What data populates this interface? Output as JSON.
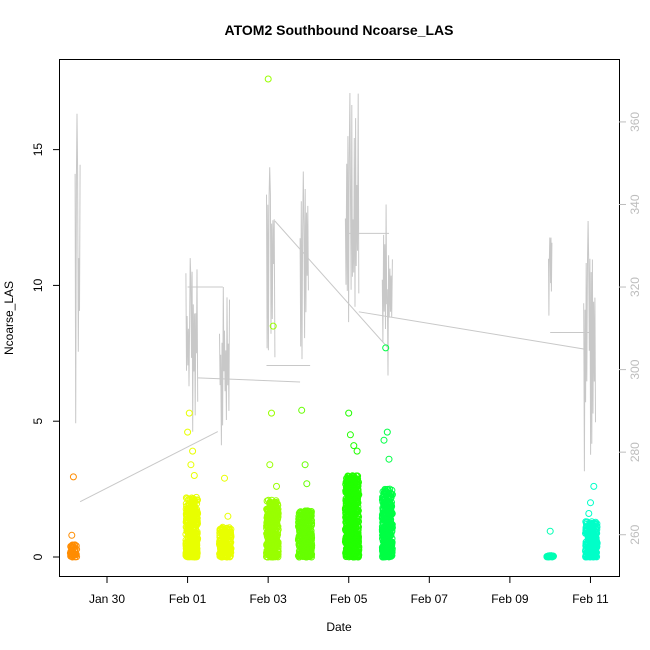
{
  "chart_data": {
    "type": "scatter",
    "title": "ATOM2 Southbound Ncoarse_LAS",
    "xlabel": "Date",
    "ylabel": "Ncoarse_LAS",
    "x_unit": "days",
    "x_ticks": [
      {
        "label": "Jan 30",
        "date": "2017-01-30"
      },
      {
        "label": "Feb 01",
        "date": "2017-02-01"
      },
      {
        "label": "Feb 03",
        "date": "2017-02-03"
      },
      {
        "label": "Feb 05",
        "date": "2017-02-05"
      },
      {
        "label": "Feb 07",
        "date": "2017-02-07"
      },
      {
        "label": "Feb 09",
        "date": "2017-02-09"
      },
      {
        "label": "Feb 11",
        "date": "2017-02-11"
      }
    ],
    "xlim": [
      "2017-01-28 20:00",
      "2017-02-11 17:00"
    ],
    "ylim": [
      -0.7,
      18.3
    ],
    "y_ticks": [
      0,
      5,
      10,
      15
    ],
    "y2lim": [
      250,
      375
    ],
    "y2_ticks": [
      260,
      280,
      300,
      320,
      340,
      360
    ],
    "grid": false,
    "point_clusters": [
      {
        "start": "2017-01-29 02:00",
        "end": "2017-01-29 06:00",
        "color": "#ff8c00",
        "dense_max": 0.45,
        "outliers": [
          {
            "x": "2017-01-29 04:00",
            "y": 2.95
          },
          {
            "x": "2017-01-29 03:00",
            "y": 0.8
          }
        ]
      },
      {
        "start": "2017-01-31 23:00",
        "end": "2017-02-01 06:00",
        "color": "#e8ff00",
        "dense_max": 2.2,
        "outliers": [
          {
            "x": "2017-02-01 01:00",
            "y": 5.3
          },
          {
            "x": "2017-02-01 00:00",
            "y": 4.6
          },
          {
            "x": "2017-02-01 03:00",
            "y": 3.9
          },
          {
            "x": "2017-02-01 02:00",
            "y": 3.4
          },
          {
            "x": "2017-02-01 04:00",
            "y": 3.0
          }
        ]
      },
      {
        "start": "2017-02-01 19:00",
        "end": "2017-02-02 02:00",
        "color": "#e8ff00",
        "dense_max": 1.1,
        "outliers": [
          {
            "x": "2017-02-01 22:00",
            "y": 2.9
          },
          {
            "x": "2017-02-02 00:00",
            "y": 1.5
          }
        ]
      },
      {
        "start": "2017-02-02 23:00",
        "end": "2017-02-03 06:00",
        "color": "#99ff00",
        "dense_max": 2.1,
        "outliers": [
          {
            "x": "2017-02-03 00:00",
            "y": 17.6
          },
          {
            "x": "2017-02-03 03:00",
            "y": 8.5
          },
          {
            "x": "2017-02-03 02:00",
            "y": 5.3
          },
          {
            "x": "2017-02-03 01:00",
            "y": 3.4
          },
          {
            "x": "2017-02-03 05:00",
            "y": 2.6
          }
        ]
      },
      {
        "start": "2017-02-03 18:00",
        "end": "2017-02-04 02:00",
        "color": "#66ff00",
        "dense_max": 1.7,
        "outliers": [
          {
            "x": "2017-02-03 20:00",
            "y": 5.4
          },
          {
            "x": "2017-02-03 22:00",
            "y": 3.4
          },
          {
            "x": "2017-02-03 23:00",
            "y": 2.7
          }
        ]
      },
      {
        "start": "2017-02-04 22:00",
        "end": "2017-02-05 06:00",
        "color": "#22ff00",
        "dense_max": 3.0,
        "outliers": [
          {
            "x": "2017-02-05 00:00",
            "y": 5.3
          },
          {
            "x": "2017-02-05 01:00",
            "y": 4.5
          },
          {
            "x": "2017-02-05 03:00",
            "y": 4.1
          },
          {
            "x": "2017-02-05 05:00",
            "y": 3.9
          }
        ]
      },
      {
        "start": "2017-02-05 20:00",
        "end": "2017-02-06 02:00",
        "color": "#00ff44",
        "dense_max": 2.5,
        "outliers": [
          {
            "x": "2017-02-05 22:00",
            "y": 7.7
          },
          {
            "x": "2017-02-05 23:00",
            "y": 4.6
          },
          {
            "x": "2017-02-05 21:00",
            "y": 4.3
          },
          {
            "x": "2017-02-06 00:00",
            "y": 3.6
          }
        ]
      },
      {
        "start": "2017-02-09 22:00",
        "end": "2017-02-10 02:00",
        "color": "#00ffb4",
        "dense_max": 0.05,
        "outliers": [
          {
            "x": "2017-02-10 00:00",
            "y": 0.95
          }
        ]
      },
      {
        "start": "2017-02-10 21:00",
        "end": "2017-02-11 04:00",
        "color": "#00ffc8",
        "dense_max": 1.3,
        "outliers": [
          {
            "x": "2017-02-11 02:00",
            "y": 2.6
          },
          {
            "x": "2017-02-11 00:00",
            "y": 2.0
          },
          {
            "x": "2017-02-10 23:00",
            "y": 1.6
          }
        ]
      }
    ],
    "secondary_series": {
      "color": "#c8c8c8",
      "axis": "right",
      "segments": [
        {
          "start": "2017-01-29 05:00",
          "end": "2017-01-29 08:00",
          "base": 268,
          "peak": 362
        },
        {
          "start": "2017-01-31 23:00",
          "end": "2017-02-01 06:00",
          "base": 280,
          "peak": 327
        },
        {
          "start": "2017-02-01 19:00",
          "end": "2017-02-02 01:00",
          "base": 276,
          "peak": 320
        },
        {
          "start": "2017-02-02 23:00",
          "end": "2017-02-03 04:00",
          "base": 300,
          "peak": 349
        },
        {
          "start": "2017-02-03 19:00",
          "end": "2017-02-04 00:00",
          "base": 300,
          "peak": 348
        },
        {
          "start": "2017-02-04 22:00",
          "end": "2017-02-05 06:00",
          "base": 298,
          "peak": 367
        },
        {
          "start": "2017-02-05 20:00",
          "end": "2017-02-06 02:00",
          "base": 290,
          "peak": 340
        },
        {
          "start": "2017-02-09 23:00",
          "end": "2017-02-10 01:00",
          "base": 312,
          "peak": 332
        },
        {
          "start": "2017-02-10 20:00",
          "end": "2017-02-11 03:00",
          "base": 272,
          "peak": 336
        }
      ],
      "connectors": [
        {
          "from": "2017-01-29 08:00",
          "from_y": 268,
          "to": "2017-02-01 18:00",
          "to_y": 285
        },
        {
          "from": "2017-02-01 00:00",
          "from_y": 320,
          "to": "2017-02-01 21:00",
          "to_y": 320
        },
        {
          "from": "2017-02-01 06:00",
          "from_y": 298,
          "to": "2017-02-03 19:00",
          "to_y": 297
        },
        {
          "from": "2017-02-02 23:00",
          "from_y": 301,
          "to": "2017-02-04 01:00",
          "to_y": 301
        },
        {
          "from": "2017-02-03 04:00",
          "from_y": 336,
          "to": "2017-02-06 00:00",
          "to_y": 305
        },
        {
          "from": "2017-02-05 00:00",
          "from_y": 333,
          "to": "2017-02-06 00:00",
          "to_y": 333
        },
        {
          "from": "2017-02-05 06:00",
          "from_y": 314,
          "to": "2017-02-10 20:00",
          "to_y": 305
        },
        {
          "from": "2017-02-10 00:00",
          "from_y": 309,
          "to": "2017-02-11 02:00",
          "to_y": 309
        }
      ]
    }
  }
}
